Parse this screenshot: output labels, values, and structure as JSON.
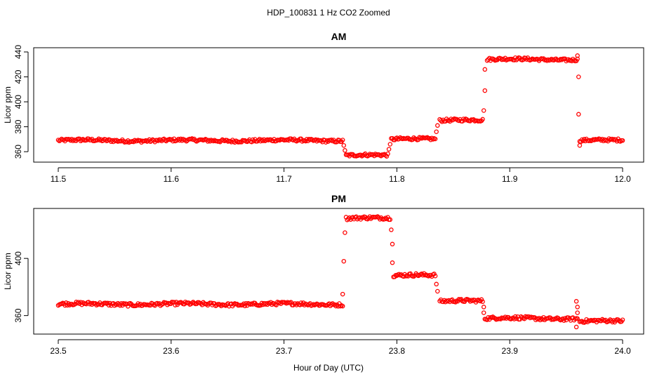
{
  "figure": {
    "title": "HDP_100831  1 Hz CO2 Zoomed",
    "xlabel": "Hour of Day (UTC)"
  },
  "chart_data": [
    {
      "type": "scatter",
      "title": "AM",
      "ylabel": "Licor ppm",
      "xlim": [
        11.5,
        12.0
      ],
      "ylim": [
        355,
        440
      ],
      "x_ticks": [
        11.5,
        11.6,
        11.7,
        11.8,
        11.9,
        12.0
      ],
      "x_tick_labels": [
        "11.5",
        "11.6",
        "11.7",
        "11.8",
        "11.9",
        "12.0"
      ],
      "y_ticks": [
        360,
        380,
        400,
        420,
        440
      ],
      "y_tick_labels": [
        "360",
        "380",
        "400",
        "420",
        "440"
      ],
      "marker": "open-circle",
      "color": "#ff0000",
      "segments": [
        {
          "x": [
            11.5,
            11.752
          ],
          "y": 369
        },
        {
          "x": [
            11.755,
            11.792
          ],
          "y": 357
        },
        {
          "x": [
            11.795,
            11.834
          ],
          "y": 370
        },
        {
          "x": [
            11.838,
            11.876
          ],
          "y": 385
        },
        {
          "x": [
            11.88,
            11.96
          ],
          "y": 434
        },
        {
          "x": [
            11.962,
            12.0
          ],
          "y": 369
        }
      ],
      "transition_points": [
        {
          "x": 11.753,
          "y": 365
        },
        {
          "x": 11.754,
          "y": 361
        },
        {
          "x": 11.793,
          "y": 362
        },
        {
          "x": 11.794,
          "y": 366
        },
        {
          "x": 11.835,
          "y": 376
        },
        {
          "x": 11.836,
          "y": 381
        },
        {
          "x": 11.877,
          "y": 393
        },
        {
          "x": 11.878,
          "y": 409
        },
        {
          "x": 11.878,
          "y": 426
        },
        {
          "x": 11.96,
          "y": 437
        },
        {
          "x": 11.961,
          "y": 420
        },
        {
          "x": 11.961,
          "y": 390
        },
        {
          "x": 11.962,
          "y": 365
        }
      ]
    },
    {
      "type": "scatter",
      "title": "PM",
      "ylabel": "Licor ppm",
      "xlim": [
        23.5,
        24.0
      ],
      "ylim": [
        350,
        432
      ],
      "x_ticks": [
        23.5,
        23.6,
        23.7,
        23.8,
        23.9,
        24.0
      ],
      "x_tick_labels": [
        "23.5",
        "23.6",
        "23.7",
        "23.8",
        "23.9",
        "24.0"
      ],
      "y_ticks": [
        360,
        400
      ],
      "y_tick_labels": [
        "360",
        "400"
      ],
      "marker": "open-circle",
      "color": "#ff0000",
      "segments": [
        {
          "x": [
            23.5,
            23.752
          ],
          "y": 368
        },
        {
          "x": [
            23.755,
            23.794
          ],
          "y": 428
        },
        {
          "x": [
            23.797,
            23.834
          ],
          "y": 388
        },
        {
          "x": [
            23.838,
            23.876
          ],
          "y": 370
        },
        {
          "x": [
            23.878,
            23.96
          ],
          "y": 358
        },
        {
          "x": [
            23.962,
            24.0
          ],
          "y": 356
        }
      ],
      "transition_points": [
        {
          "x": 23.752,
          "y": 375
        },
        {
          "x": 23.753,
          "y": 398
        },
        {
          "x": 23.754,
          "y": 418
        },
        {
          "x": 23.795,
          "y": 420
        },
        {
          "x": 23.796,
          "y": 410
        },
        {
          "x": 23.796,
          "y": 397
        },
        {
          "x": 23.835,
          "y": 382
        },
        {
          "x": 23.836,
          "y": 377
        },
        {
          "x": 23.877,
          "y": 366
        },
        {
          "x": 23.877,
          "y": 362
        },
        {
          "x": 23.959,
          "y": 370
        },
        {
          "x": 23.96,
          "y": 366
        },
        {
          "x": 23.96,
          "y": 362
        },
        {
          "x": 23.959,
          "y": 352
        }
      ]
    }
  ]
}
